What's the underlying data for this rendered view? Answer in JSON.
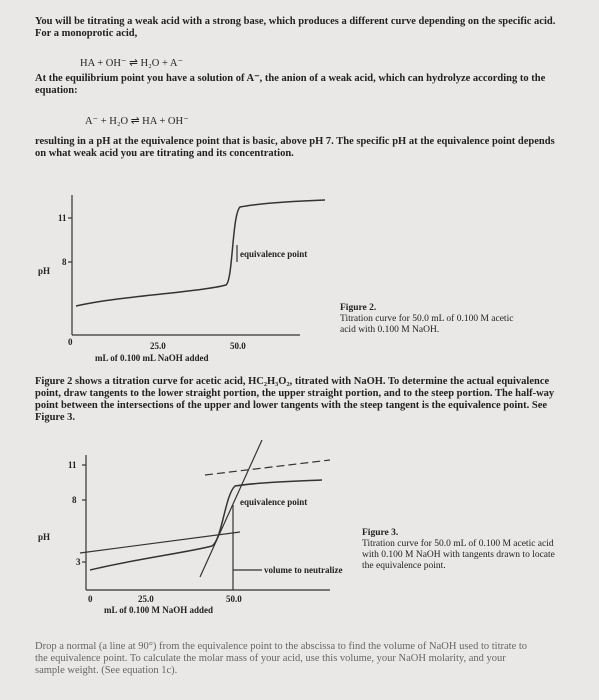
{
  "paragraphs": [
    "You will be titrating a weak acid with a strong base, which produces a different curve depending on the specific acid. For a monoprotic acid,",
    "At the equilibrium point you have a solution of A⁻, the anion of a weak acid, which can hydrolyze according to the equation:",
    "resulting in a pH at the equivalence point that is basic, above pH 7. The specific pH at the equivalence point depends on what weak acid you are titrating and its concentration.",
    "Figure 2 shows a titration curve for acetic acid, HC₂H₃O₂, titrated with NaOH. To determine the actual equivalence point, draw tangents to the lower straight portion, the upper straight portion, and to the steep portion. The half-way point between the intersections of the upper and lower tangents with the steep tangent is the equivalence point. See Figure 3.",
    "Drop a normal (a line at 90°) from the equivalence point to the abscissa to find the volume of NaOH used to titrate to the equivalence point. To calculate the molar mass of your acid, use this volume, your NaOH molarity, and your sample weight. (See equation 1c)."
  ],
  "equations": [
    "HA + OH⁻ ⇌ H₂O + A⁻",
    "A⁻ + H₂O ⇌ HA + OH⁻"
  ],
  "figure2": {
    "y_labels": [
      "11",
      "8"
    ],
    "y_title": "pH",
    "x_labels": [
      "0",
      "25.0",
      "50.0"
    ],
    "x_title": "mL of 0.100 mL NaOH added",
    "annotation": "equivalence point",
    "caption_title": "Figure 2.",
    "caption": "Titration curve for 50.0 mL of 0.100 M acetic acid with 0.100 M NaOH."
  },
  "figure3": {
    "y_labels": [
      "11",
      "8",
      "3"
    ],
    "y_title": "pH",
    "x_labels": [
      "0",
      "25.0",
      "50.0"
    ],
    "x_title": "mL of 0.100 M NaOH added",
    "annotations": [
      "equivalence point",
      "volume to neutralize"
    ],
    "caption_title": "Figure 3.",
    "caption": "Titration curve for 50.0 mL of 0.100 M acetic acid with 0.100 M NaOH with tangents drawn to locate the equivalence point."
  }
}
